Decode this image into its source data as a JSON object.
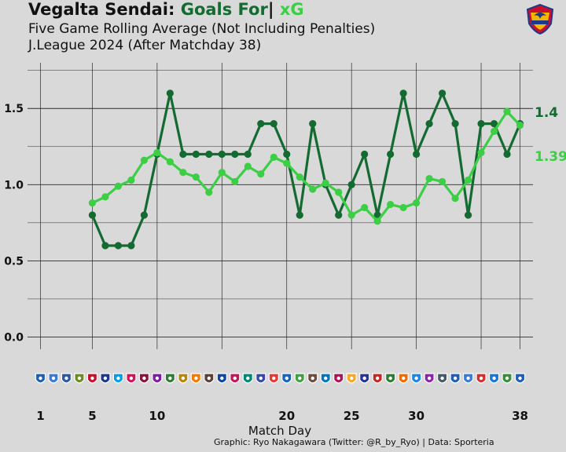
{
  "header": {
    "title_team": "Vegalta Sendai:",
    "title_goals_for": "Goals For",
    "title_separator": "|",
    "title_xg": "xG",
    "subtitle_line1": "Five Game Rolling Average (Not Including Penalties)",
    "subtitle_line2": "J.League 2024 (After Matchday 38)"
  },
  "footer": {
    "credit": "Graphic: Ryo Nakagawara (Twitter: @R_by_Ryo) | Data: Sporteria"
  },
  "colors": {
    "goals_for": "#146b32",
    "xg": "#3ccf45",
    "background": "#d9d9d9",
    "grid": "#2b2b2b",
    "badge_primary": "#1f5fb4",
    "logo_red": "#c8102e",
    "logo_gold": "#f2b705",
    "logo_blue": "#1d3a8a"
  },
  "icons": {
    "team_logo": "vegalta-sendai-crest-icon",
    "opponent_badge": "club-badge-icon"
  },
  "chart_data": {
    "type": "line",
    "title": "Vegalta Sendai: Goals For | xG",
    "subtitle": "Five Game Rolling Average (Not Including Penalties) J.League 2024 (After Matchday 38)",
    "xlabel": "Match Day",
    "ylabel": "",
    "x_ticks": [
      1,
      5,
      10,
      20,
      25,
      30,
      38
    ],
    "y_ticks": [
      "0.0",
      "0.5",
      "1.0",
      "1.5"
    ],
    "y_tick_values": [
      0,
      0.5,
      1,
      1.5
    ],
    "xlim": [
      0,
      39
    ],
    "ylim": [
      -0.08,
      1.8
    ],
    "grid": true,
    "x": [
      5,
      6,
      7,
      8,
      9,
      10,
      11,
      12,
      13,
      14,
      15,
      16,
      17,
      18,
      19,
      20,
      21,
      22,
      23,
      24,
      25,
      26,
      27,
      28,
      29,
      30,
      31,
      32,
      33,
      34,
      35,
      36,
      37,
      38
    ],
    "series": [
      {
        "name": "Goals For",
        "values": [
          0.8,
          0.6,
          0.6,
          0.6,
          0.8,
          1.2,
          1.6,
          1.2,
          1.2,
          1.2,
          1.2,
          1.2,
          1.2,
          1.4,
          1.4,
          1.2,
          0.8,
          1.4,
          1.0,
          0.8,
          1.0,
          1.2,
          0.8,
          1.2,
          1.6,
          1.2,
          1.4,
          1.6,
          1.4,
          0.8,
          1.4,
          1.4,
          1.2,
          1.4
        ],
        "end_label": "1.4"
      },
      {
        "name": "xG",
        "values": [
          0.88,
          0.92,
          0.99,
          1.03,
          1.16,
          1.21,
          1.15,
          1.08,
          1.05,
          0.95,
          1.08,
          1.02,
          1.12,
          1.07,
          1.18,
          1.14,
          1.05,
          0.97,
          1.01,
          0.95,
          0.8,
          0.85,
          0.76,
          0.87,
          0.85,
          0.88,
          1.04,
          1.02,
          0.91,
          1.03,
          1.21,
          1.35,
          1.48,
          1.39
        ],
        "end_label": "1.39"
      }
    ]
  }
}
